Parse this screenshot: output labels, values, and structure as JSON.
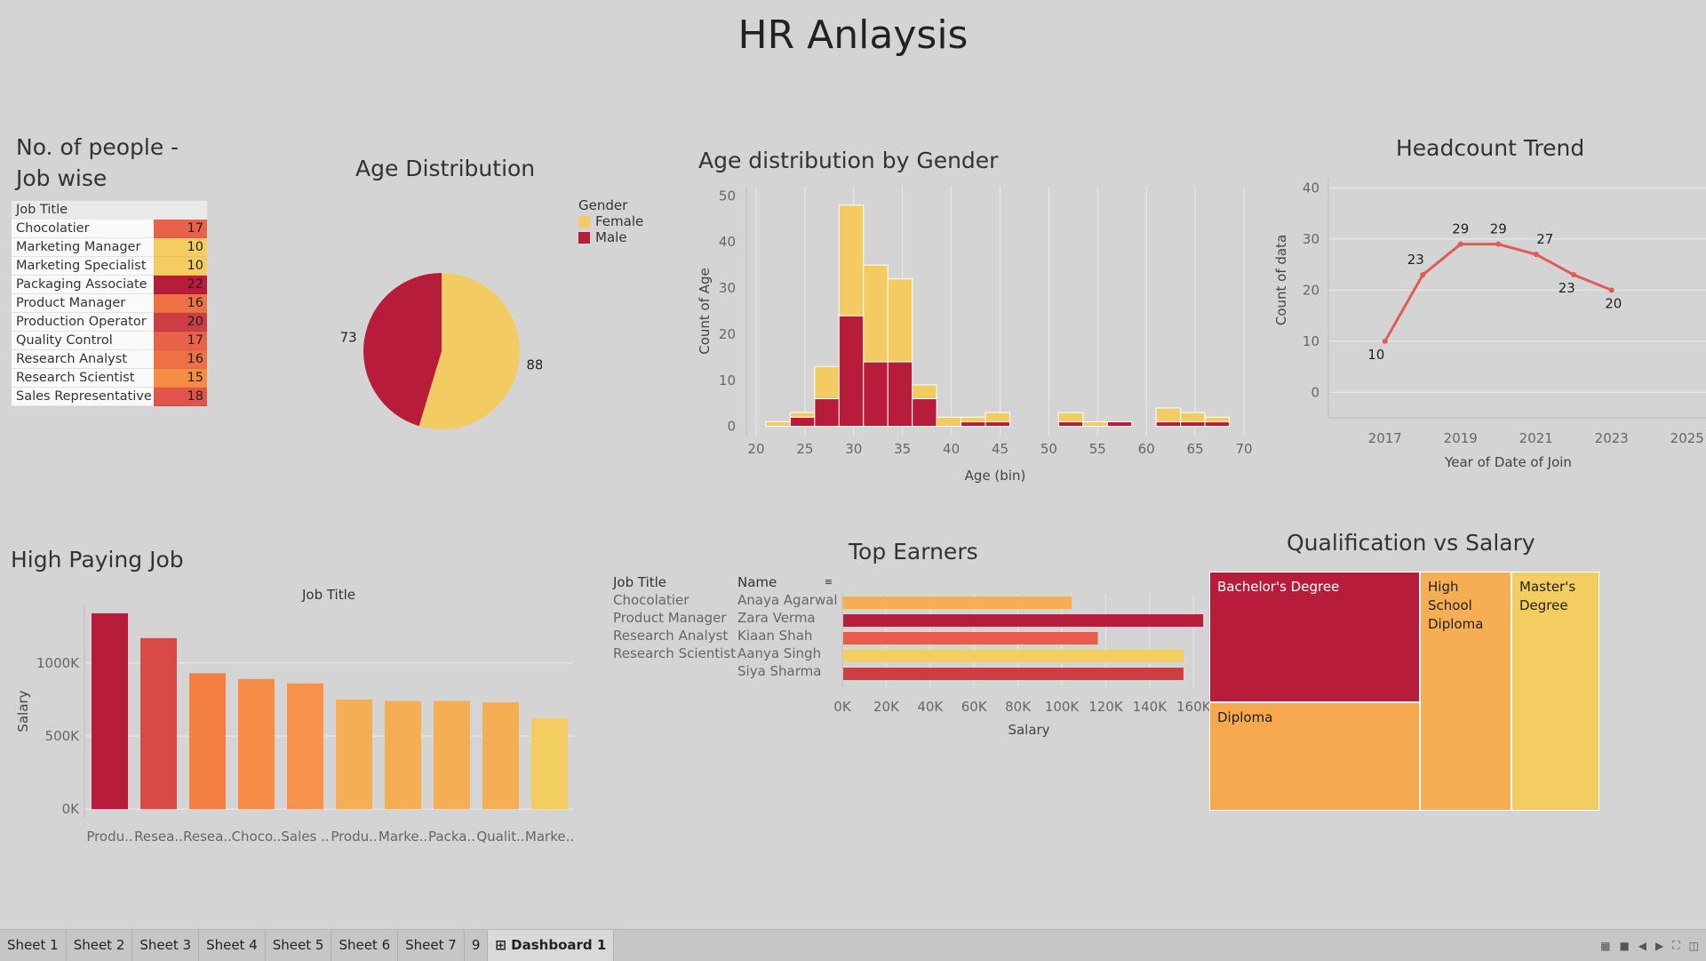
{
  "dashboard": {
    "title": "HR Anlaysis"
  },
  "job_table": {
    "title_line1": "No. of people  -",
    "title_line2": "Job wise",
    "header": "Job Title",
    "rows": [
      {
        "job": "Chocolatier",
        "count": "17",
        "color": "#e8624a"
      },
      {
        "job": "Marketing Manager",
        "count": "10",
        "color": "#f3cd62"
      },
      {
        "job": "Marketing Specialist",
        "count": "10",
        "color": "#f3cd62"
      },
      {
        "job": "Packaging Associate",
        "count": "22",
        "color": "#b71d3b"
      },
      {
        "job": "Product Manager",
        "count": "16",
        "color": "#ee7045"
      },
      {
        "job": "Production Operator",
        "count": "20",
        "color": "#cc3e44"
      },
      {
        "job": "Quality Control",
        "count": "17",
        "color": "#e8624a"
      },
      {
        "job": "Research Analyst",
        "count": "16",
        "color": "#ee7045"
      },
      {
        "job": "Research Scientist",
        "count": "15",
        "color": "#f78c45"
      },
      {
        "job": "Sales Representative",
        "count": "18",
        "color": "#e0544b"
      }
    ]
  },
  "age_distribution": {
    "title": "Age Distribution",
    "legend_title": "Gender",
    "legend": [
      {
        "label": "Female",
        "color": "#f2cc63"
      },
      {
        "label": "Male",
        "color": "#b71d3b"
      }
    ]
  },
  "age_by_gender": {
    "title": "Age distribution by Gender"
  },
  "headcount": {
    "title": "Headcount Trend"
  },
  "high_paying": {
    "title": "High Paying Job"
  },
  "top_earners": {
    "title": "Top Earners",
    "col_job": "Job Title",
    "col_name": "Name",
    "rows": [
      {
        "job": "Chocolatier",
        "name": "Anaya Agarwal"
      },
      {
        "job": "Product Manager",
        "name": "Zara Verma"
      },
      {
        "job": "Research Analyst",
        "name": "Kiaan Shah"
      },
      {
        "job": "Research Scientist",
        "name": "Aanya Singh"
      },
      {
        "job": "",
        "name": "Siya Sharma"
      }
    ]
  },
  "qualification": {
    "title": "Qualification vs Salary",
    "cells": [
      {
        "label": "Bachelor's Degree",
        "color": "#b71d3b"
      },
      {
        "label": "Diploma",
        "color": "#f5a84e"
      },
      {
        "label": "High School Diploma",
        "color": "#f5ae53"
      },
      {
        "label": "Master's Degree",
        "color": "#f3cd62"
      }
    ]
  },
  "tabs": [
    "Sheet 1",
    "Sheet 2",
    "Sheet 3",
    "Sheet 4",
    "Sheet 5",
    "Sheet 6",
    "Sheet 7",
    "9",
    "Dashboard 1"
  ],
  "chart_data": [
    {
      "id": "age_pie",
      "type": "pie",
      "title": "Age Distribution",
      "categories": [
        "Female",
        "Male"
      ],
      "values": [
        88,
        73
      ],
      "colors": [
        "#f2cc63",
        "#b71d3b"
      ]
    },
    {
      "id": "age_hist",
      "type": "bar",
      "stacked": true,
      "title": "Age distribution by Gender",
      "xlabel": "Age (bin)",
      "ylabel": "Count of Age",
      "xlim": [
        19,
        70
      ],
      "ylim": [
        -2,
        52
      ],
      "xticks": [
        20,
        25,
        30,
        35,
        40,
        45,
        50,
        55,
        60,
        65,
        70
      ],
      "yticks": [
        0,
        10,
        20,
        30,
        40,
        50
      ],
      "bin_width": 2.5,
      "bins": [
        21,
        23.5,
        26,
        28.5,
        31,
        33.5,
        36,
        38.5,
        41,
        43.5,
        46,
        48.5,
        51,
        53.5,
        56,
        58.5,
        61,
        63.5,
        66
      ],
      "series": [
        {
          "name": "Male",
          "color": "#b71d3b",
          "values": [
            0,
            2,
            6,
            24,
            14,
            14,
            6,
            0,
            1,
            1,
            0,
            0,
            1,
            0,
            1,
            0,
            1,
            1,
            1
          ]
        },
        {
          "name": "Female",
          "color": "#f2cc63",
          "values": [
            1,
            1,
            7,
            24,
            21,
            18,
            3,
            2,
            1,
            2,
            0,
            0,
            2,
            1,
            0,
            0,
            3,
            2,
            1
          ]
        }
      ]
    },
    {
      "id": "headcount",
      "type": "line",
      "title": "Headcount Trend",
      "xlabel": "Year of Date of Join",
      "ylabel": "Count of data",
      "xlim": [
        2015.5,
        2025.5
      ],
      "ylim": [
        -5,
        42
      ],
      "xticks": [
        2017,
        2019,
        2021,
        2023,
        2025
      ],
      "yticks": [
        0,
        10,
        20,
        30,
        40
      ],
      "x": [
        2017,
        2018,
        2019,
        2020,
        2021,
        2022,
        2023
      ],
      "values": [
        10,
        23,
        29,
        29,
        27,
        23,
        20
      ],
      "color": "#e05a57"
    },
    {
      "id": "high_paying",
      "type": "bar",
      "title": "High Paying Job",
      "header_label": "Job Title",
      "ylabel": "Salary",
      "ylim": [
        -60000,
        1400000
      ],
      "yticks": [
        0,
        500000,
        1000000
      ],
      "ytick_labels": [
        "0K",
        "500K",
        "1000K"
      ],
      "categories": [
        "Produ..",
        "Resea..",
        "Resea..",
        "Choco..",
        "Sales ..",
        "Produ..",
        "Marke..",
        "Packa..",
        "Qualit..",
        "Marke.."
      ],
      "values": [
        1340000,
        1170000,
        930000,
        890000,
        860000,
        750000,
        740000,
        740000,
        730000,
        620000
      ],
      "colors": [
        "#b71d3b",
        "#d94a47",
        "#f47f45",
        "#f78c45",
        "#f8914b",
        "#f6ae55",
        "#f6ae55",
        "#f6ae55",
        "#f6ae55",
        "#f3cd62"
      ]
    },
    {
      "id": "top_earners",
      "type": "bar",
      "orientation": "horizontal",
      "title": "Top Earners",
      "xlabel": "Salary",
      "xlim": [
        0,
        168000
      ],
      "xticks": [
        0,
        20000,
        40000,
        60000,
        80000,
        100000,
        120000,
        140000,
        160000
      ],
      "xtick_labels": [
        "0K",
        "20K",
        "40K",
        "60K",
        "80K",
        "100K",
        "120K",
        "140K",
        "160K"
      ],
      "categories": [
        "Anaya Agarwal",
        "Zara Verma",
        "Kiaan Shah",
        "Aanya Singh",
        "Siya Sharma"
      ],
      "values": [
        104000,
        164000,
        116000,
        155000,
        155000
      ],
      "colors": [
        "#f6ae55",
        "#b71d3b",
        "#e95c4a",
        "#f3cd62",
        "#cc3e44"
      ]
    },
    {
      "id": "qualification",
      "type": "treemap",
      "title": "Qualification vs Salary",
      "categories": [
        "Bachelor's Degree",
        "Diploma",
        "High School Diploma",
        "Master's Degree"
      ],
      "values": [
        131,
        111,
        60,
        58
      ]
    }
  ]
}
